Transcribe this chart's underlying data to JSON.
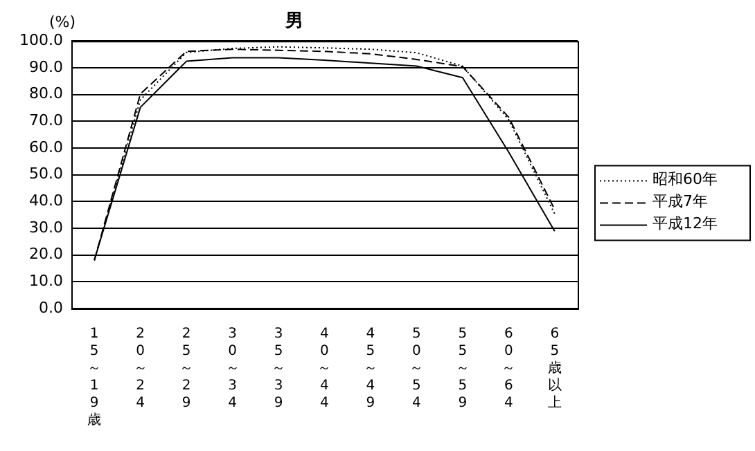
{
  "chart_data": {
    "type": "line",
    "title": "男",
    "ylabel": "(%)",
    "categories": [
      "15～19歳",
      "20～24",
      "25～29",
      "30～34",
      "35～39",
      "40～44",
      "45～49",
      "50～54",
      "55～59",
      "60～64",
      "65歳以上"
    ],
    "series": [
      {
        "name": "昭和60年",
        "color": "#000000",
        "line_style": "dotted",
        "values": [
          18,
          78,
          95.7,
          97.2,
          97.8,
          97.4,
          96.9,
          95.6,
          90.6,
          70.6,
          35.4
        ]
      },
      {
        "name": "平成7年",
        "color": "#000000",
        "line_style": "dashed",
        "values": [
          18,
          80.2,
          96.1,
          96.9,
          96.5,
          96.1,
          95.2,
          93.1,
          90.4,
          71.5,
          37
        ]
      },
      {
        "name": "平成12年",
        "color": "#000000",
        "line_style": "solid",
        "values": [
          18.1,
          75.2,
          92.4,
          93.7,
          93.7,
          92.8,
          91.7,
          90.6,
          86.3,
          58.5,
          28.9
        ]
      }
    ],
    "ylim": [
      0,
      100
    ],
    "yticks": [
      {
        "value": 0,
        "label": "0.0"
      },
      {
        "value": 10,
        "label": "10.0"
      },
      {
        "value": 20,
        "label": "20.0"
      },
      {
        "value": 30,
        "label": "30.0"
      },
      {
        "value": 40,
        "label": "40.0"
      },
      {
        "value": 50,
        "label": "50.0"
      },
      {
        "value": 60,
        "label": "60.0"
      },
      {
        "value": 70,
        "label": "70.0"
      },
      {
        "value": 80,
        "label": "80.0"
      },
      {
        "value": 90,
        "label": "90.0"
      },
      {
        "value": 100,
        "label": "100.0"
      }
    ],
    "grid": "y",
    "legend": "right",
    "marker": "none"
  }
}
